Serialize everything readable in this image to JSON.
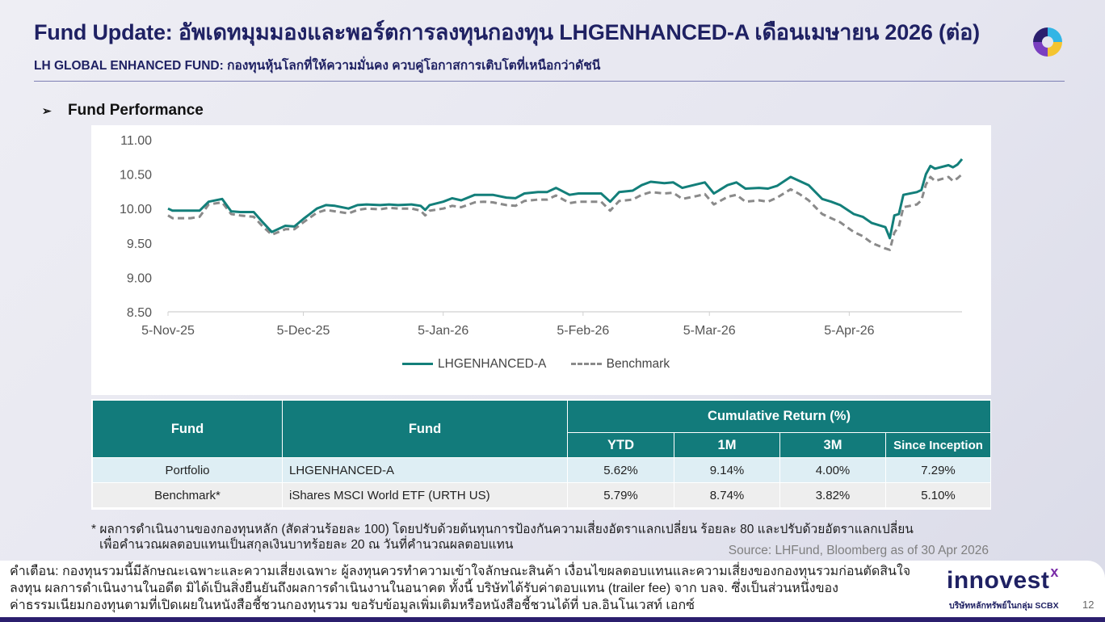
{
  "header": {
    "title": "Fund Update: อัพเดทมุมมองและพอร์ตการลงทุนกองทุน LHGENHANCED-A เดือนเมษายน 2026 (ต่อ)",
    "subtitle": "LH GLOBAL ENHANCED FUND: กองทุนหุ้นโลกที่ให้ความมั่นคง ควบคู่โอกาสการเติบโตที่เหนือกว่าดัชนี"
  },
  "section": {
    "bullet": "➢",
    "title": "Fund Performance"
  },
  "colors": {
    "fund_line": "#137f7a",
    "benchmark_line": "#8a8a8a",
    "table_header": "#127b7b",
    "brand": "#1f2163"
  },
  "chart_data": {
    "type": "line",
    "title": "",
    "xlabel": "",
    "ylabel": "",
    "x_ticks": [
      "5-Nov-25",
      "5-Dec-25",
      "5-Jan-26",
      "5-Feb-26",
      "5-Mar-26",
      "5-Apr-26"
    ],
    "y_ticks": [
      "11.00",
      "10.50",
      "10.00",
      "9.50",
      "9.00",
      "8.50"
    ],
    "ylim": [
      8.5,
      11.0
    ],
    "xlim": [
      "2025-11-05",
      "2026-04-30"
    ],
    "grid": false,
    "legend": "bottom-center",
    "series": [
      {
        "name": "LHGENHANCED-A",
        "style": "solid",
        "points": [
          [
            "2025-11-05",
            10.0
          ],
          [
            "2025-11-06",
            9.97
          ],
          [
            "2025-11-10",
            9.97
          ],
          [
            "2025-11-12",
            9.97
          ],
          [
            "2025-11-14",
            10.1
          ],
          [
            "2025-11-17",
            10.14
          ],
          [
            "2025-11-19",
            9.96
          ],
          [
            "2025-11-21",
            9.95
          ],
          [
            "2025-11-24",
            9.95
          ],
          [
            "2025-11-26",
            9.8
          ],
          [
            "2025-11-28",
            9.66
          ],
          [
            "2025-12-01",
            9.75
          ],
          [
            "2025-12-03",
            9.74
          ],
          [
            "2025-12-05",
            9.85
          ],
          [
            "2025-12-08",
            10.0
          ],
          [
            "2025-12-10",
            10.05
          ],
          [
            "2025-12-12",
            10.04
          ],
          [
            "2025-12-15",
            10.0
          ],
          [
            "2025-12-17",
            10.05
          ],
          [
            "2025-12-19",
            10.06
          ],
          [
            "2025-12-22",
            10.05
          ],
          [
            "2025-12-24",
            10.06
          ],
          [
            "2025-12-26",
            10.05
          ],
          [
            "2025-12-29",
            10.06
          ],
          [
            "2025-12-31",
            10.04
          ],
          [
            "2026-01-01",
            9.98
          ],
          [
            "2026-01-02",
            10.05
          ],
          [
            "2026-01-05",
            10.1
          ],
          [
            "2026-01-07",
            10.15
          ],
          [
            "2026-01-09",
            10.12
          ],
          [
            "2026-01-12",
            10.2
          ],
          [
            "2026-01-14",
            10.2
          ],
          [
            "2026-01-16",
            10.2
          ],
          [
            "2026-01-19",
            10.16
          ],
          [
            "2026-01-21",
            10.15
          ],
          [
            "2026-01-23",
            10.22
          ],
          [
            "2026-01-26",
            10.24
          ],
          [
            "2026-01-28",
            10.24
          ],
          [
            "2026-01-30",
            10.3
          ],
          [
            "2026-02-02",
            10.2
          ],
          [
            "2026-02-04",
            10.22
          ],
          [
            "2026-02-06",
            10.22
          ],
          [
            "2026-02-09",
            10.22
          ],
          [
            "2026-02-11",
            10.1
          ],
          [
            "2026-02-13",
            10.24
          ],
          [
            "2026-02-16",
            10.26
          ],
          [
            "2026-02-18",
            10.34
          ],
          [
            "2026-02-20",
            10.39
          ],
          [
            "2026-02-23",
            10.37
          ],
          [
            "2026-02-25",
            10.38
          ],
          [
            "2026-02-27",
            10.3
          ],
          [
            "2026-03-02",
            10.35
          ],
          [
            "2026-03-04",
            10.38
          ],
          [
            "2026-03-06",
            10.22
          ],
          [
            "2026-03-09",
            10.34
          ],
          [
            "2026-03-11",
            10.38
          ],
          [
            "2026-03-13",
            10.29
          ],
          [
            "2026-03-16",
            10.3
          ],
          [
            "2026-03-18",
            10.29
          ],
          [
            "2026-03-20",
            10.33
          ],
          [
            "2026-03-23",
            10.46
          ],
          [
            "2026-03-25",
            10.4
          ],
          [
            "2026-03-27",
            10.34
          ],
          [
            "2026-03-30",
            10.14
          ],
          [
            "2026-04-01",
            10.1
          ],
          [
            "2026-04-03",
            10.05
          ],
          [
            "2026-04-06",
            9.92
          ],
          [
            "2026-04-08",
            9.88
          ],
          [
            "2026-04-10",
            9.79
          ],
          [
            "2026-04-13",
            9.73
          ],
          [
            "2026-04-14",
            9.57
          ],
          [
            "2026-04-15",
            9.9
          ],
          [
            "2026-04-16",
            9.92
          ],
          [
            "2026-04-17",
            10.2
          ],
          [
            "2026-04-20",
            10.24
          ],
          [
            "2026-04-21",
            10.27
          ],
          [
            "2026-04-22",
            10.5
          ],
          [
            "2026-04-23",
            10.62
          ],
          [
            "2026-04-24",
            10.58
          ],
          [
            "2026-04-27",
            10.63
          ],
          [
            "2026-04-28",
            10.6
          ],
          [
            "2026-04-29",
            10.64
          ],
          [
            "2026-04-30",
            10.72
          ]
        ]
      },
      {
        "name": "Benchmark",
        "style": "dashed",
        "points": [
          [
            "2025-11-05",
            9.9
          ],
          [
            "2025-11-06",
            9.86
          ],
          [
            "2025-11-10",
            9.86
          ],
          [
            "2025-11-12",
            9.88
          ],
          [
            "2025-11-14",
            10.06
          ],
          [
            "2025-11-17",
            10.09
          ],
          [
            "2025-11-19",
            9.92
          ],
          [
            "2025-11-21",
            9.9
          ],
          [
            "2025-11-24",
            9.88
          ],
          [
            "2025-11-26",
            9.74
          ],
          [
            "2025-11-28",
            9.62
          ],
          [
            "2025-12-01",
            9.7
          ],
          [
            "2025-12-03",
            9.7
          ],
          [
            "2025-12-05",
            9.8
          ],
          [
            "2025-12-08",
            9.94
          ],
          [
            "2025-12-10",
            9.98
          ],
          [
            "2025-12-12",
            9.96
          ],
          [
            "2025-12-15",
            9.93
          ],
          [
            "2025-12-17",
            9.98
          ],
          [
            "2025-12-19",
            10.0
          ],
          [
            "2025-12-22",
            9.99
          ],
          [
            "2025-12-24",
            10.01
          ],
          [
            "2025-12-26",
            10.0
          ],
          [
            "2025-12-29",
            10.0
          ],
          [
            "2025-12-31",
            9.97
          ],
          [
            "2026-01-01",
            9.9
          ],
          [
            "2026-01-02",
            9.97
          ],
          [
            "2026-01-05",
            10.0
          ],
          [
            "2026-01-07",
            10.04
          ],
          [
            "2026-01-09",
            10.02
          ],
          [
            "2026-01-12",
            10.09
          ],
          [
            "2026-01-14",
            10.1
          ],
          [
            "2026-01-16",
            10.09
          ],
          [
            "2026-01-19",
            10.05
          ],
          [
            "2026-01-21",
            10.04
          ],
          [
            "2026-01-23",
            10.11
          ],
          [
            "2026-01-26",
            10.13
          ],
          [
            "2026-01-28",
            10.13
          ],
          [
            "2026-01-30",
            10.19
          ],
          [
            "2026-02-02",
            10.08
          ],
          [
            "2026-02-04",
            10.1
          ],
          [
            "2026-02-06",
            10.1
          ],
          [
            "2026-02-09",
            10.1
          ],
          [
            "2026-02-11",
            9.97
          ],
          [
            "2026-02-13",
            10.11
          ],
          [
            "2026-02-16",
            10.13
          ],
          [
            "2026-02-18",
            10.2
          ],
          [
            "2026-02-20",
            10.24
          ],
          [
            "2026-02-23",
            10.22
          ],
          [
            "2026-02-25",
            10.23
          ],
          [
            "2026-02-27",
            10.14
          ],
          [
            "2026-03-02",
            10.18
          ],
          [
            "2026-03-04",
            10.21
          ],
          [
            "2026-03-06",
            10.06
          ],
          [
            "2026-03-09",
            10.17
          ],
          [
            "2026-03-11",
            10.2
          ],
          [
            "2026-03-13",
            10.1
          ],
          [
            "2026-03-16",
            10.12
          ],
          [
            "2026-03-18",
            10.1
          ],
          [
            "2026-03-20",
            10.16
          ],
          [
            "2026-03-23",
            10.28
          ],
          [
            "2026-03-25",
            10.21
          ],
          [
            "2026-03-27",
            10.12
          ],
          [
            "2026-03-30",
            9.92
          ],
          [
            "2026-04-01",
            9.86
          ],
          [
            "2026-04-03",
            9.8
          ],
          [
            "2026-04-06",
            9.66
          ],
          [
            "2026-04-08",
            9.6
          ],
          [
            "2026-04-10",
            9.5
          ],
          [
            "2026-04-13",
            9.42
          ],
          [
            "2026-04-14",
            9.4
          ],
          [
            "2026-04-15",
            9.65
          ],
          [
            "2026-04-16",
            9.74
          ],
          [
            "2026-04-17",
            10.02
          ],
          [
            "2026-04-20",
            10.06
          ],
          [
            "2026-04-21",
            10.12
          ],
          [
            "2026-04-22",
            10.35
          ],
          [
            "2026-04-23",
            10.46
          ],
          [
            "2026-04-24",
            10.4
          ],
          [
            "2026-04-27",
            10.46
          ],
          [
            "2026-04-28",
            10.4
          ],
          [
            "2026-04-29",
            10.44
          ],
          [
            "2026-04-30",
            10.5
          ]
        ]
      }
    ]
  },
  "table": {
    "head_fund_1": "Fund",
    "head_fund_2": "Fund",
    "head_group": "Cumulative Return (%)",
    "sub_headers": [
      "YTD",
      "1M",
      "3M",
      "Since Inception"
    ],
    "rows": [
      {
        "type": "Portfolio",
        "name": "LHGENHANCED-A",
        "values": [
          "5.62%",
          "9.14%",
          "4.00%",
          "7.29%"
        ]
      },
      {
        "type": "Benchmark*",
        "name": "iShares MSCI World ETF (URTH US)",
        "values": [
          "5.79%",
          "8.74%",
          "3.82%",
          "5.10%"
        ]
      }
    ]
  },
  "footnote": {
    "line1": "* ผลการดำเนินงานของกองทุนหลัก (สัดส่วนร้อยละ 100) โดยปรับด้วยต้นทุนการป้องกันความเสี่ยงอัตราแลกเปลี่ยน ร้อยละ 80 และปรับด้วยอัตราแลกเปลี่ยน",
    "line2": "เพื่อคำนวณผลตอบแทนเป็นสกุลเงินบาทร้อยละ 20 ณ วันที่คำนวณผลตอบแทน"
  },
  "source": "Source: LHFund, Bloomberg as of 30 Apr 2026",
  "disclaimer": {
    "line1": "คำเตือน: กองทุนรวมนี้มีลักษณะเฉพาะและความเสี่ยงเฉพาะ ผู้ลงทุนควรทำความเข้าใจลักษณะสินค้า เงื่อนไขผลตอบแทนและความเสี่ยงของกองทุนรวมก่อนตัดสินใจ",
    "line2": "ลงทุน ผลการดำเนินงานในอดีต มิได้เป็นสิ่งยืนยันถึงผลการดำเนินงานในอนาคต ทั้งนี้ บริษัทได้รับค่าตอบแทน (trailer fee) จาก บลจ. ซึ่งเป็นส่วนหนึ่งของ",
    "line3": "ค่าธรรมเนียมกองทุนตามที่เปิดเผยในหนังสือชี้ชวนกองทุนรวม ขอรับข้อมูลเพิ่มเติมหรือหนังสือชี้ชวนได้ที่ บล.อินโนเวสท์ เอกซ์"
  },
  "brand": {
    "name": "innovest",
    "mark": "x",
    "tagline": "บริษัทหลักทรัพย์ในกลุ่ม SCBX"
  },
  "page_number": "12",
  "icons": {
    "bullet": "arrow-bullet-icon",
    "logo": "ring-logo-icon"
  }
}
